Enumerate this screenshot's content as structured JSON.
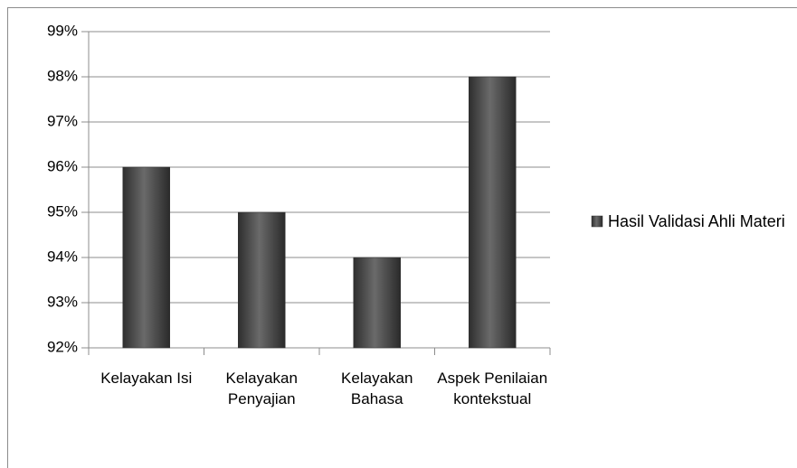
{
  "chart_data": {
    "type": "bar",
    "categories": [
      "Kelayakan Isi",
      "Kelayakan Penyajian",
      "Kelayakan Bahasa",
      "Aspek Penilaian kontekstual"
    ],
    "series": [
      {
        "name": "Hasil Validasi Ahli Materi",
        "color": "#4a4a4a",
        "values": [
          96,
          95,
          94,
          98
        ]
      }
    ],
    "ylim": [
      92,
      99
    ],
    "yticks": [
      {
        "value": 92,
        "label": "92%"
      },
      {
        "value": 93,
        "label": "93%"
      },
      {
        "value": 94,
        "label": "94%"
      },
      {
        "value": 95,
        "label": "95%"
      },
      {
        "value": 96,
        "label": "96%"
      },
      {
        "value": 97,
        "label": "97%"
      },
      {
        "value": 98,
        "label": "98%"
      },
      {
        "value": 99,
        "label": "99%"
      }
    ],
    "grid": true,
    "legend": "right"
  }
}
